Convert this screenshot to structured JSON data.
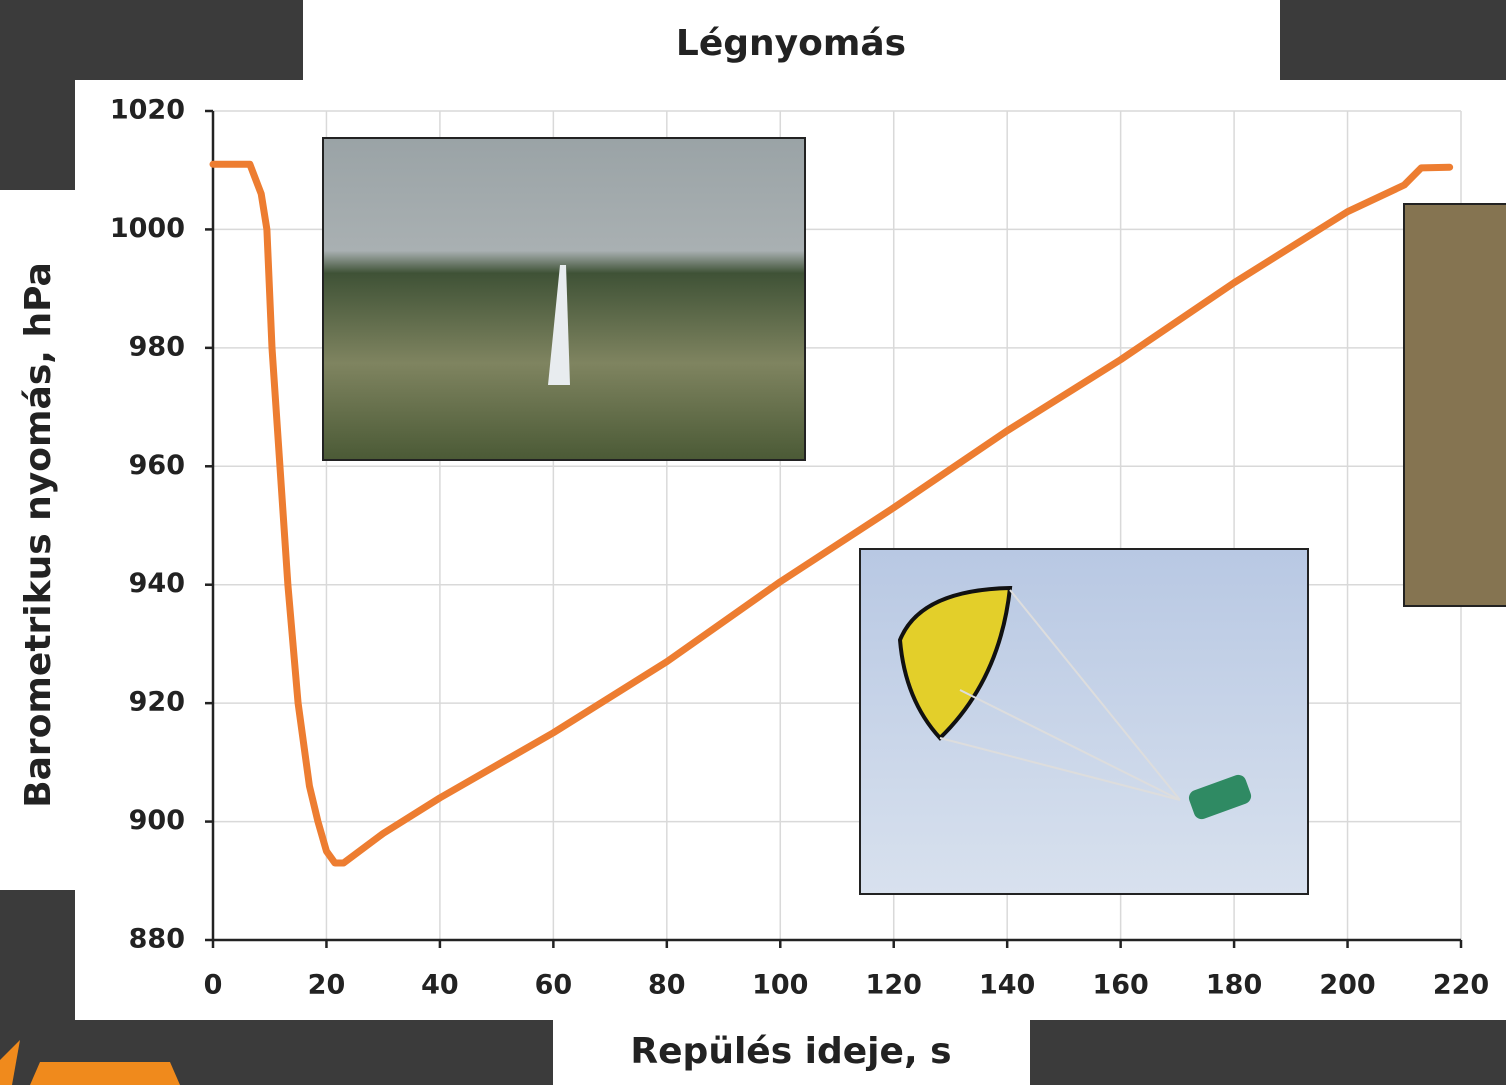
{
  "chart_data": {
    "type": "line",
    "title": "Légnyomás",
    "xlabel": "Repülés ideje, s",
    "ylabel": "Barometrikus nyomás, hPa",
    "x": [
      0,
      6.5,
      8.5,
      9.5,
      10.4,
      11.8,
      13.2,
      15,
      17,
      18.5,
      20,
      21.5,
      23,
      30,
      40,
      60,
      80,
      100,
      120,
      140,
      160,
      180,
      200,
      210,
      213,
      218
    ],
    "values": [
      1011,
      1011,
      1006,
      1000,
      980,
      960,
      940,
      920,
      906,
      900,
      895,
      893,
      893,
      898,
      904,
      915,
      927,
      940.5,
      953,
      966,
      978,
      991,
      1003,
      1007.5,
      1010.4,
      1010.5
    ],
    "color": "#ed7d31",
    "xlim": [
      0,
      220
    ],
    "xticks": [
      0,
      20,
      40,
      60,
      80,
      100,
      120,
      140,
      160,
      180,
      200,
      220
    ],
    "ylim": [
      880,
      1020
    ],
    "yticks": [
      880,
      900,
      920,
      940,
      960,
      980,
      1000,
      1020
    ],
    "grid": true
  }
}
